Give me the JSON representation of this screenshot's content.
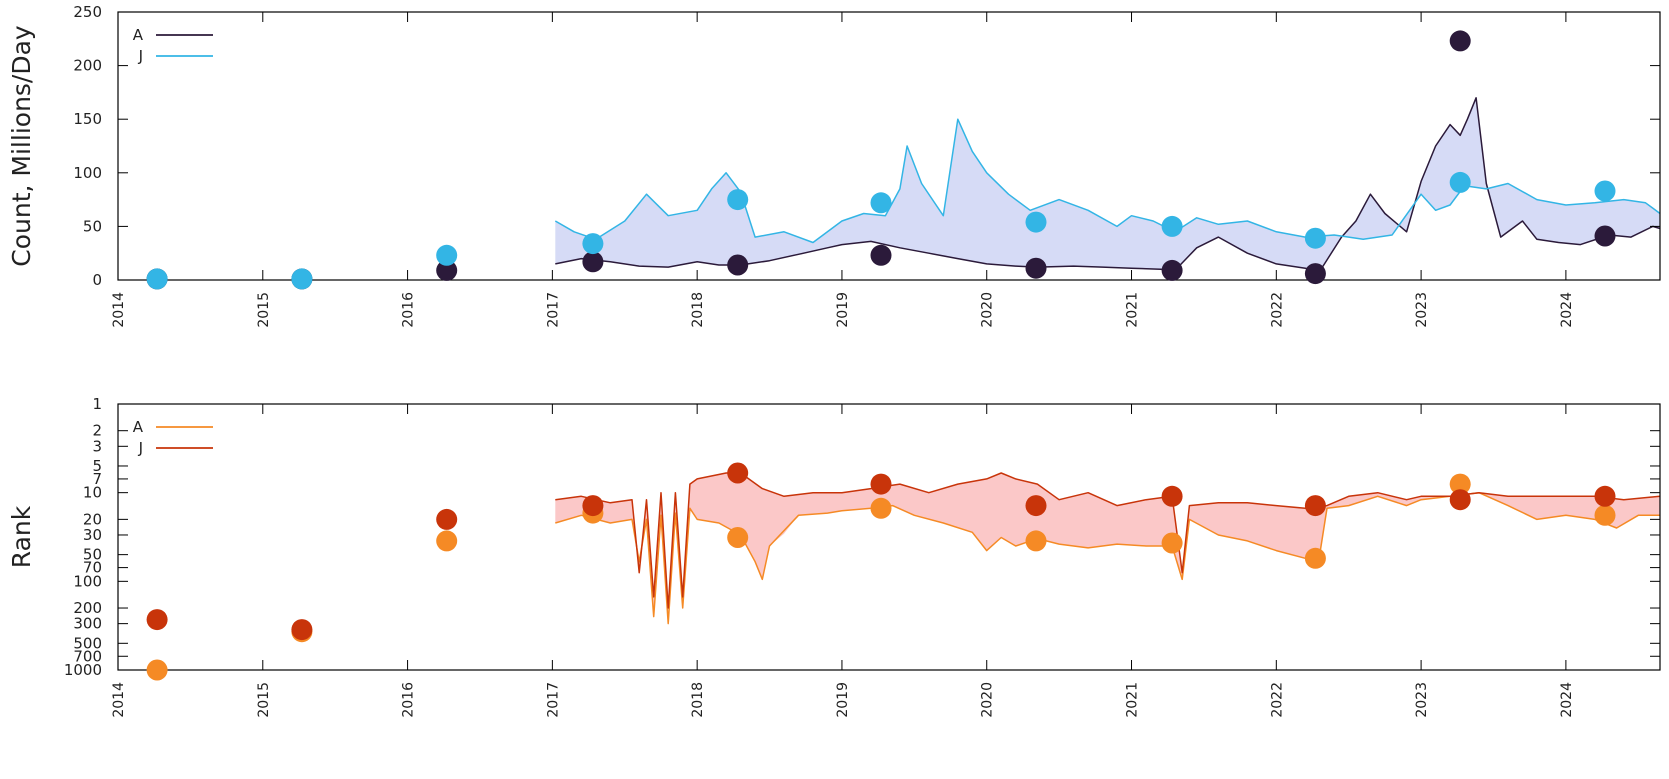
{
  "chart_data": [
    {
      "type": "line",
      "ylabel": "Count, Millions/Day",
      "xlabel": "",
      "x_ticks": [
        "2014",
        "2015",
        "2016",
        "2017",
        "2018",
        "2019",
        "2020",
        "2021",
        "2022",
        "2023",
        "2024"
      ],
      "xlim": [
        2014.0,
        2024.65
      ],
      "ylim": [
        0,
        250
      ],
      "y_ticks": [
        0,
        50,
        100,
        150,
        200,
        250
      ],
      "legend_position": "top-left",
      "series": [
        {
          "name": "A",
          "color": "#2b1a3a",
          "line": [
            [
              2017.02,
              15
            ],
            [
              2017.2,
              20
            ],
            [
              2017.4,
              17
            ],
            [
              2017.6,
              13
            ],
            [
              2017.8,
              12
            ],
            [
              2018.0,
              17
            ],
            [
              2018.15,
              14
            ],
            [
              2018.3,
              14
            ],
            [
              2018.5,
              18
            ],
            [
              2018.7,
              24
            ],
            [
              2018.9,
              30
            ],
            [
              2019.0,
              33
            ],
            [
              2019.2,
              36
            ],
            [
              2019.4,
              30
            ],
            [
              2019.6,
              25
            ],
            [
              2019.8,
              20
            ],
            [
              2020.0,
              15
            ],
            [
              2020.2,
              13
            ],
            [
              2020.35,
              12
            ],
            [
              2020.6,
              13
            ],
            [
              2020.8,
              12
            ],
            [
              2021.0,
              11
            ],
            [
              2021.2,
              10
            ],
            [
              2021.3,
              9
            ],
            [
              2021.45,
              30
            ],
            [
              2021.6,
              40
            ],
            [
              2021.8,
              25
            ],
            [
              2022.0,
              15
            ],
            [
              2022.2,
              11
            ],
            [
              2022.3,
              8
            ],
            [
              2022.45,
              40
            ],
            [
              2022.55,
              55
            ],
            [
              2022.65,
              80
            ],
            [
              2022.75,
              62
            ],
            [
              2022.9,
              45
            ],
            [
              2023.0,
              92
            ],
            [
              2023.1,
              125
            ],
            [
              2023.2,
              145
            ],
            [
              2023.27,
              135
            ],
            [
              2023.32,
              150
            ],
            [
              2023.38,
              170
            ],
            [
              2023.45,
              90
            ],
            [
              2023.55,
              40
            ],
            [
              2023.7,
              55
            ],
            [
              2023.8,
              38
            ],
            [
              2023.95,
              35
            ],
            [
              2024.1,
              33
            ],
            [
              2024.3,
              42
            ],
            [
              2024.45,
              40
            ],
            [
              2024.6,
              50
            ],
            [
              2024.65,
              48
            ]
          ],
          "points": [
            [
              2014.27,
              1
            ],
            [
              2015.27,
              1
            ],
            [
              2016.27,
              9
            ],
            [
              2017.28,
              17
            ],
            [
              2018.28,
              14
            ],
            [
              2019.27,
              23
            ],
            [
              2020.34,
              11
            ],
            [
              2021.28,
              9
            ],
            [
              2022.27,
              6
            ],
            [
              2023.27,
              223
            ],
            [
              2024.27,
              41
            ]
          ]
        },
        {
          "name": "J",
          "color": "#33b5e5",
          "line": [
            [
              2017.02,
              55
            ],
            [
              2017.15,
              45
            ],
            [
              2017.3,
              38
            ],
            [
              2017.5,
              55
            ],
            [
              2017.65,
              80
            ],
            [
              2017.8,
              60
            ],
            [
              2018.0,
              65
            ],
            [
              2018.1,
              85
            ],
            [
              2018.2,
              100
            ],
            [
              2018.3,
              82
            ],
            [
              2018.4,
              40
            ],
            [
              2018.6,
              45
            ],
            [
              2018.8,
              35
            ],
            [
              2019.0,
              55
            ],
            [
              2019.15,
              62
            ],
            [
              2019.3,
              60
            ],
            [
              2019.4,
              85
            ],
            [
              2019.45,
              125
            ],
            [
              2019.55,
              90
            ],
            [
              2019.7,
              60
            ],
            [
              2019.8,
              150
            ],
            [
              2019.9,
              120
            ],
            [
              2020.0,
              100
            ],
            [
              2020.15,
              80
            ],
            [
              2020.3,
              65
            ],
            [
              2020.5,
              75
            ],
            [
              2020.7,
              65
            ],
            [
              2020.9,
              50
            ],
            [
              2021.0,
              60
            ],
            [
              2021.15,
              55
            ],
            [
              2021.3,
              45
            ],
            [
              2021.45,
              58
            ],
            [
              2021.6,
              52
            ],
            [
              2021.8,
              55
            ],
            [
              2022.0,
              45
            ],
            [
              2022.2,
              40
            ],
            [
              2022.4,
              42
            ],
            [
              2022.6,
              38
            ],
            [
              2022.8,
              42
            ],
            [
              2023.0,
              80
            ],
            [
              2023.1,
              65
            ],
            [
              2023.2,
              70
            ],
            [
              2023.3,
              88
            ],
            [
              2023.45,
              85
            ],
            [
              2023.6,
              90
            ],
            [
              2023.8,
              75
            ],
            [
              2024.0,
              70
            ],
            [
              2024.2,
              72
            ],
            [
              2024.4,
              75
            ],
            [
              2024.55,
              72
            ],
            [
              2024.65,
              62
            ]
          ],
          "points": [
            [
              2014.27,
              1
            ],
            [
              2015.27,
              1
            ],
            [
              2016.27,
              23
            ],
            [
              2017.28,
              34
            ],
            [
              2018.28,
              75
            ],
            [
              2019.27,
              72
            ],
            [
              2020.34,
              54
            ],
            [
              2021.28,
              50
            ],
            [
              2022.27,
              39
            ],
            [
              2023.27,
              91
            ],
            [
              2024.27,
              83
            ]
          ]
        }
      ]
    },
    {
      "type": "line",
      "ylabel": "Rank",
      "xlabel": "",
      "x_ticks": [
        "2014",
        "2015",
        "2016",
        "2017",
        "2018",
        "2019",
        "2020",
        "2021",
        "2022",
        "2023",
        "2024"
      ],
      "xlim": [
        2014.0,
        2024.65
      ],
      "y_scale": "log",
      "y_reversed": true,
      "ylim": [
        1,
        1000
      ],
      "y_ticks": [
        1,
        2,
        3,
        5,
        7,
        10,
        20,
        30,
        50,
        70,
        100,
        200,
        300,
        500,
        700,
        1000
      ],
      "legend_position": "top-left",
      "series": [
        {
          "name": "A",
          "color": "#f58a25",
          "line": [
            [
              2017.02,
              22
            ],
            [
              2017.2,
              18
            ],
            [
              2017.4,
              22
            ],
            [
              2017.55,
              20
            ],
            [
              2017.6,
              60
            ],
            [
              2017.65,
              20
            ],
            [
              2017.7,
              250
            ],
            [
              2017.75,
              18
            ],
            [
              2017.8,
              300
            ],
            [
              2017.85,
              17
            ],
            [
              2017.9,
              200
            ],
            [
              2017.95,
              15
            ],
            [
              2018.0,
              20
            ],
            [
              2018.15,
              22
            ],
            [
              2018.3,
              30
            ],
            [
              2018.4,
              60
            ],
            [
              2018.45,
              95
            ],
            [
              2018.5,
              40
            ],
            [
              2018.7,
              18
            ],
            [
              2018.9,
              17
            ],
            [
              2019.0,
              16
            ],
            [
              2019.2,
              15
            ],
            [
              2019.35,
              14
            ],
            [
              2019.5,
              18
            ],
            [
              2019.7,
              22
            ],
            [
              2019.9,
              28
            ],
            [
              2020.0,
              45
            ],
            [
              2020.1,
              32
            ],
            [
              2020.2,
              40
            ],
            [
              2020.35,
              33
            ],
            [
              2020.5,
              38
            ],
            [
              2020.7,
              42
            ],
            [
              2020.9,
              38
            ],
            [
              2021.1,
              40
            ],
            [
              2021.28,
              40
            ],
            [
              2021.35,
              95
            ],
            [
              2021.4,
              20
            ],
            [
              2021.6,
              30
            ],
            [
              2021.8,
              35
            ],
            [
              2022.0,
              45
            ],
            [
              2022.2,
              55
            ],
            [
              2022.3,
              50
            ],
            [
              2022.35,
              15
            ],
            [
              2022.5,
              14
            ],
            [
              2022.7,
              11
            ],
            [
              2022.9,
              14
            ],
            [
              2023.0,
              12
            ],
            [
              2023.2,
              11
            ],
            [
              2023.4,
              10
            ],
            [
              2023.6,
              14
            ],
            [
              2023.8,
              20
            ],
            [
              2024.0,
              18
            ],
            [
              2024.2,
              20
            ],
            [
              2024.35,
              25
            ],
            [
              2024.5,
              18
            ],
            [
              2024.65,
              18
            ]
          ],
          "points": [
            [
              2014.27,
              1000
            ],
            [
              2015.27,
              370
            ],
            [
              2016.27,
              35
            ],
            [
              2017.28,
              17
            ],
            [
              2018.28,
              32
            ],
            [
              2019.27,
              15
            ],
            [
              2020.34,
              35
            ],
            [
              2021.28,
              37
            ],
            [
              2022.27,
              55
            ],
            [
              2023.27,
              8
            ],
            [
              2024.27,
              18
            ]
          ]
        },
        {
          "name": "J",
          "color": "#c8340a",
          "line": [
            [
              2017.02,
              12
            ],
            [
              2017.2,
              11
            ],
            [
              2017.4,
              13
            ],
            [
              2017.55,
              12
            ],
            [
              2017.6,
              80
            ],
            [
              2017.65,
              12
            ],
            [
              2017.7,
              150
            ],
            [
              2017.75,
              10
            ],
            [
              2017.8,
              200
            ],
            [
              2017.85,
              10
            ],
            [
              2017.9,
              150
            ],
            [
              2017.95,
              8
            ],
            [
              2018.0,
              7
            ],
            [
              2018.2,
              6
            ],
            [
              2018.3,
              6
            ],
            [
              2018.45,
              9
            ],
            [
              2018.6,
              11
            ],
            [
              2018.8,
              10
            ],
            [
              2019.0,
              10
            ],
            [
              2019.2,
              9
            ],
            [
              2019.4,
              8
            ],
            [
              2019.6,
              10
            ],
            [
              2019.8,
              8
            ],
            [
              2020.0,
              7
            ],
            [
              2020.1,
              6
            ],
            [
              2020.2,
              7
            ],
            [
              2020.35,
              8
            ],
            [
              2020.5,
              12
            ],
            [
              2020.7,
              10
            ],
            [
              2020.9,
              14
            ],
            [
              2021.1,
              12
            ],
            [
              2021.28,
              11
            ],
            [
              2021.35,
              80
            ],
            [
              2021.4,
              14
            ],
            [
              2021.6,
              13
            ],
            [
              2021.8,
              13
            ],
            [
              2022.0,
              14
            ],
            [
              2022.2,
              15
            ],
            [
              2022.35,
              14
            ],
            [
              2022.5,
              11
            ],
            [
              2022.7,
              10
            ],
            [
              2022.9,
              12
            ],
            [
              2023.0,
              11
            ],
            [
              2023.2,
              11
            ],
            [
              2023.4,
              10
            ],
            [
              2023.6,
              11
            ],
            [
              2023.8,
              11
            ],
            [
              2024.0,
              11
            ],
            [
              2024.2,
              11
            ],
            [
              2024.4,
              12
            ],
            [
              2024.65,
              11
            ]
          ],
          "points": [
            [
              2014.27,
              270
            ],
            [
              2015.27,
              350
            ],
            [
              2016.27,
              20
            ],
            [
              2017.28,
              14
            ],
            [
              2018.28,
              6
            ],
            [
              2019.27,
              8
            ],
            [
              2020.34,
              14
            ],
            [
              2021.28,
              11
            ],
            [
              2022.27,
              14
            ],
            [
              2023.27,
              12
            ],
            [
              2024.27,
              11
            ]
          ]
        }
      ]
    }
  ]
}
